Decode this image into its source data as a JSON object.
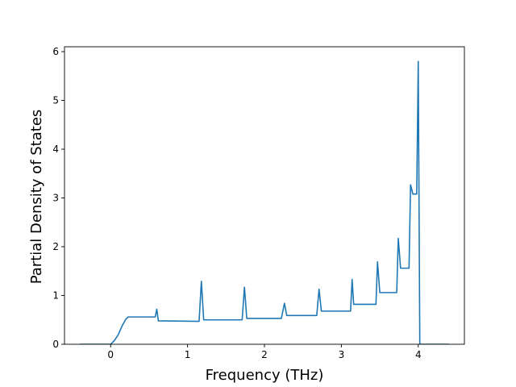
{
  "chart_data": {
    "type": "line",
    "title": "",
    "xlabel": "Frequency (THz)",
    "ylabel": "Partial Density of States",
    "xlim": [
      -0.6,
      4.6
    ],
    "ylim": [
      0,
      6.1
    ],
    "xticks": [
      0,
      1,
      2,
      3,
      4
    ],
    "xtick_labels": [
      "0",
      "1",
      "2",
      "3",
      "4"
    ],
    "yticks": [
      0,
      1,
      2,
      3,
      4,
      5,
      6
    ],
    "ytick_labels": [
      "0",
      "1",
      "2",
      "3",
      "4",
      "5",
      "6"
    ],
    "grid": false,
    "legend": "none",
    "series": [
      {
        "name": "",
        "color": "#1f77b4",
        "points": [
          [
            -0.4,
            0.0
          ],
          [
            0.0,
            0.0
          ],
          [
            0.05,
            0.08
          ],
          [
            0.1,
            0.2
          ],
          [
            0.15,
            0.38
          ],
          [
            0.2,
            0.52
          ],
          [
            0.23,
            0.56
          ],
          [
            0.58,
            0.56
          ],
          [
            0.6,
            0.72
          ],
          [
            0.62,
            0.48
          ],
          [
            1.15,
            0.47
          ],
          [
            1.18,
            1.29
          ],
          [
            1.21,
            0.5
          ],
          [
            1.71,
            0.5
          ],
          [
            1.74,
            1.17
          ],
          [
            1.77,
            0.53
          ],
          [
            2.22,
            0.53
          ],
          [
            2.26,
            0.84
          ],
          [
            2.29,
            0.59
          ],
          [
            2.68,
            0.59
          ],
          [
            2.71,
            1.13
          ],
          [
            2.74,
            0.68
          ],
          [
            3.12,
            0.68
          ],
          [
            3.14,
            1.33
          ],
          [
            3.16,
            0.82
          ],
          [
            3.45,
            0.82
          ],
          [
            3.47,
            1.69
          ],
          [
            3.5,
            1.06
          ],
          [
            3.72,
            1.06
          ],
          [
            3.74,
            2.17
          ],
          [
            3.77,
            1.56
          ],
          [
            3.88,
            1.56
          ],
          [
            3.9,
            3.27
          ],
          [
            3.93,
            3.08
          ],
          [
            3.98,
            3.08
          ],
          [
            4.0,
            5.8
          ],
          [
            4.02,
            0.0
          ],
          [
            4.4,
            0.0
          ]
        ]
      }
    ]
  }
}
